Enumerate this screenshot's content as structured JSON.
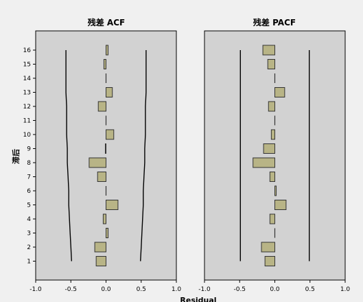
{
  "chart_data": {
    "type": "bar",
    "orientation": "horizontal",
    "y_axis_title": "滞后",
    "x_axis_title": "Residual",
    "lags": [
      1,
      2,
      3,
      4,
      5,
      6,
      7,
      8,
      9,
      10,
      11,
      12,
      13,
      14,
      15,
      16
    ],
    "y_tick_labels": [
      "1",
      "2",
      "3",
      "4",
      "5",
      "6",
      "7",
      "8",
      "9",
      "10",
      "11",
      "12",
      "13",
      "14",
      "15",
      "16"
    ],
    "x_tick_labels": [
      "-1.0",
      "-0.5",
      "0.0",
      "0.5",
      "1.0"
    ],
    "xlim": [
      -1.0,
      1.0
    ],
    "colors": {
      "bar_fill": "#b8b486",
      "bar_stroke": "#333333",
      "plot_bg": "#d2d2d2",
      "page_bg": "#f0f0f0"
    },
    "panels": [
      {
        "title": "残差 ACF",
        "values": [
          -0.14,
          -0.16,
          0.03,
          -0.04,
          0.17,
          0.0,
          -0.12,
          -0.24,
          -0.01,
          0.11,
          0.0,
          -0.11,
          0.09,
          0.0,
          -0.03,
          0.03
        ],
        "upper_confidence_limit": [
          0.49,
          0.5,
          0.51,
          0.52,
          0.53,
          0.53,
          0.54,
          0.55,
          0.55,
          0.56,
          0.56,
          0.56,
          0.57,
          0.57,
          0.57,
          0.57
        ],
        "lower_confidence_limit": [
          -0.49,
          -0.5,
          -0.51,
          -0.52,
          -0.53,
          -0.53,
          -0.54,
          -0.55,
          -0.55,
          -0.56,
          -0.56,
          -0.56,
          -0.57,
          -0.57,
          -0.57,
          -0.57
        ]
      },
      {
        "title": "残差 PACF",
        "values": [
          -0.14,
          -0.19,
          0.0,
          -0.07,
          0.16,
          0.02,
          -0.07,
          -0.31,
          -0.16,
          -0.05,
          0.0,
          -0.09,
          0.14,
          0.0,
          -0.1,
          -0.17
        ],
        "upper_confidence_limit": [
          0.49,
          0.49,
          0.49,
          0.49,
          0.49,
          0.49,
          0.49,
          0.49,
          0.49,
          0.49,
          0.49,
          0.49,
          0.49,
          0.49,
          0.49,
          0.49
        ],
        "lower_confidence_limit": [
          -0.49,
          -0.49,
          -0.49,
          -0.49,
          -0.49,
          -0.49,
          -0.49,
          -0.49,
          -0.49,
          -0.49,
          -0.49,
          -0.49,
          -0.49,
          -0.49,
          -0.49,
          -0.49
        ]
      }
    ]
  }
}
